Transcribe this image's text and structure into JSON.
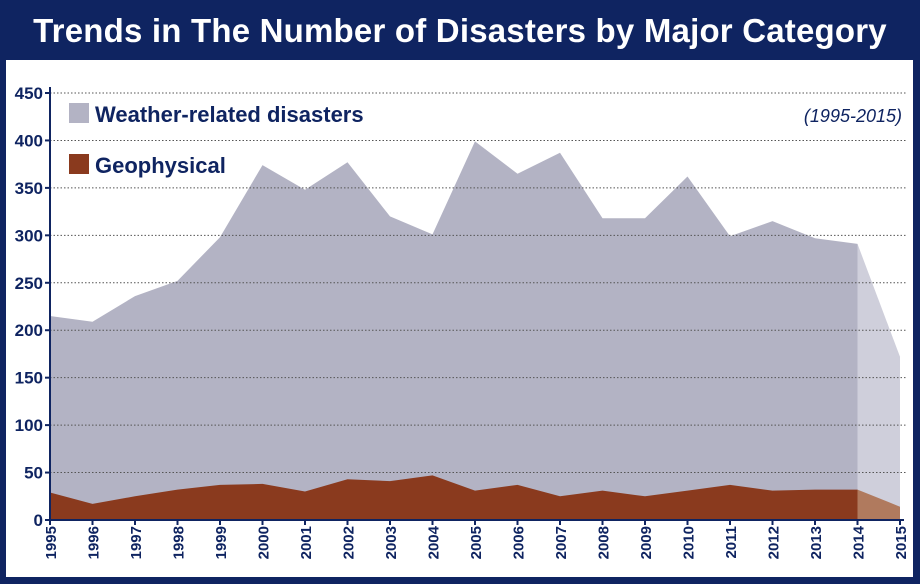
{
  "chart_data": {
    "type": "area",
    "title": "Trends in The Number of Disasters by Major Category",
    "annotation": "(1995-2015)",
    "x": [
      "1995",
      "1996",
      "1997",
      "1998",
      "1999",
      "2000",
      "2001",
      "2002",
      "2003",
      "2004",
      "2005",
      "2006",
      "2007",
      "2008",
      "2009",
      "2010",
      "2011",
      "2012",
      "2013",
      "2014",
      "2015"
    ],
    "yticks": [
      "0",
      "50",
      "100",
      "150",
      "200",
      "250",
      "300",
      "350",
      "400",
      "450"
    ],
    "ylim": [
      0,
      450
    ],
    "grid": true,
    "legend_placement": "top-left",
    "series": [
      {
        "name": "Weather-related disasters",
        "color": "#b3b3c4",
        "last_segment_color": "#cfcfdb",
        "values": [
          215,
          209,
          236,
          252,
          298,
          374,
          348,
          377,
          320,
          301,
          399,
          365,
          387,
          318,
          318,
          362,
          299,
          315,
          297,
          291,
          172
        ]
      },
      {
        "name": "Geophysical",
        "color": "#8a3a1e",
        "last_segment_color": "#b07a5e",
        "values": [
          29,
          17,
          25,
          32,
          37,
          38,
          30,
          43,
          41,
          47,
          31,
          37,
          25,
          31,
          25,
          31,
          37,
          31,
          32,
          32,
          14
        ]
      }
    ]
  }
}
